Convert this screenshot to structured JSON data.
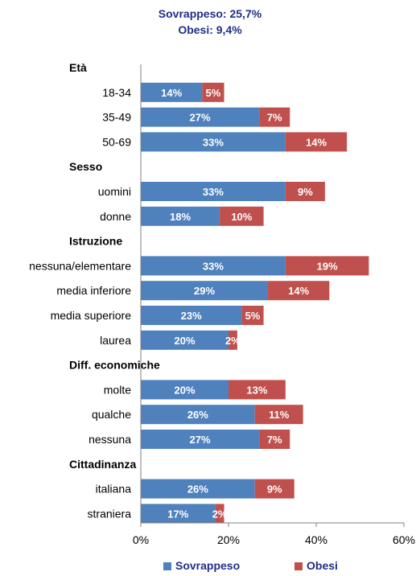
{
  "header": {
    "line1": "Sovrappeso: 25,7%",
    "line2": "Obesi: 9,4%"
  },
  "chart_data": {
    "type": "bar",
    "orientation": "horizontal",
    "stacked": true,
    "xlim": [
      0,
      60
    ],
    "x_ticks": [
      "0%",
      "20%",
      "40%",
      "60%"
    ],
    "grid": false,
    "legend_position": "bottom",
    "groups": [
      {
        "label": "Età",
        "categories": [
          "18-34",
          "35-49",
          "50-69"
        ]
      },
      {
        "label": "Sesso",
        "categories": [
          "uomini",
          "donne"
        ]
      },
      {
        "label": "Istruzione",
        "categories": [
          "nessuna/elementare",
          "media inferiore",
          "media superiore",
          "laurea"
        ]
      },
      {
        "label": "Diff. economiche",
        "categories": [
          "molte",
          "qualche",
          "nessuna"
        ]
      },
      {
        "label": "Cittadinanza",
        "categories": [
          "italiana",
          "straniera"
        ]
      }
    ],
    "series": [
      {
        "name": "Sovrappeso",
        "color": "#4f81bd",
        "values": [
          14,
          27,
          33,
          33,
          18,
          33,
          29,
          23,
          20,
          20,
          26,
          27,
          26,
          17
        ],
        "labels": [
          "14%",
          "27%",
          "33%",
          "33%",
          "18%",
          "33%",
          "29%",
          "23%",
          "20%",
          "20%",
          "26%",
          "27%",
          "26%",
          "17%"
        ]
      },
      {
        "name": "Obesi",
        "color": "#c0504d",
        "values": [
          5,
          7,
          14,
          9,
          10,
          19,
          14,
          5,
          2,
          13,
          11,
          7,
          9,
          2
        ],
        "labels": [
          "5%",
          "7%",
          "14%",
          "9%",
          "10%",
          "19%",
          "14%",
          "5%",
          "2%",
          "13%",
          "11%",
          "7%",
          "9%",
          "2%"
        ]
      }
    ]
  }
}
